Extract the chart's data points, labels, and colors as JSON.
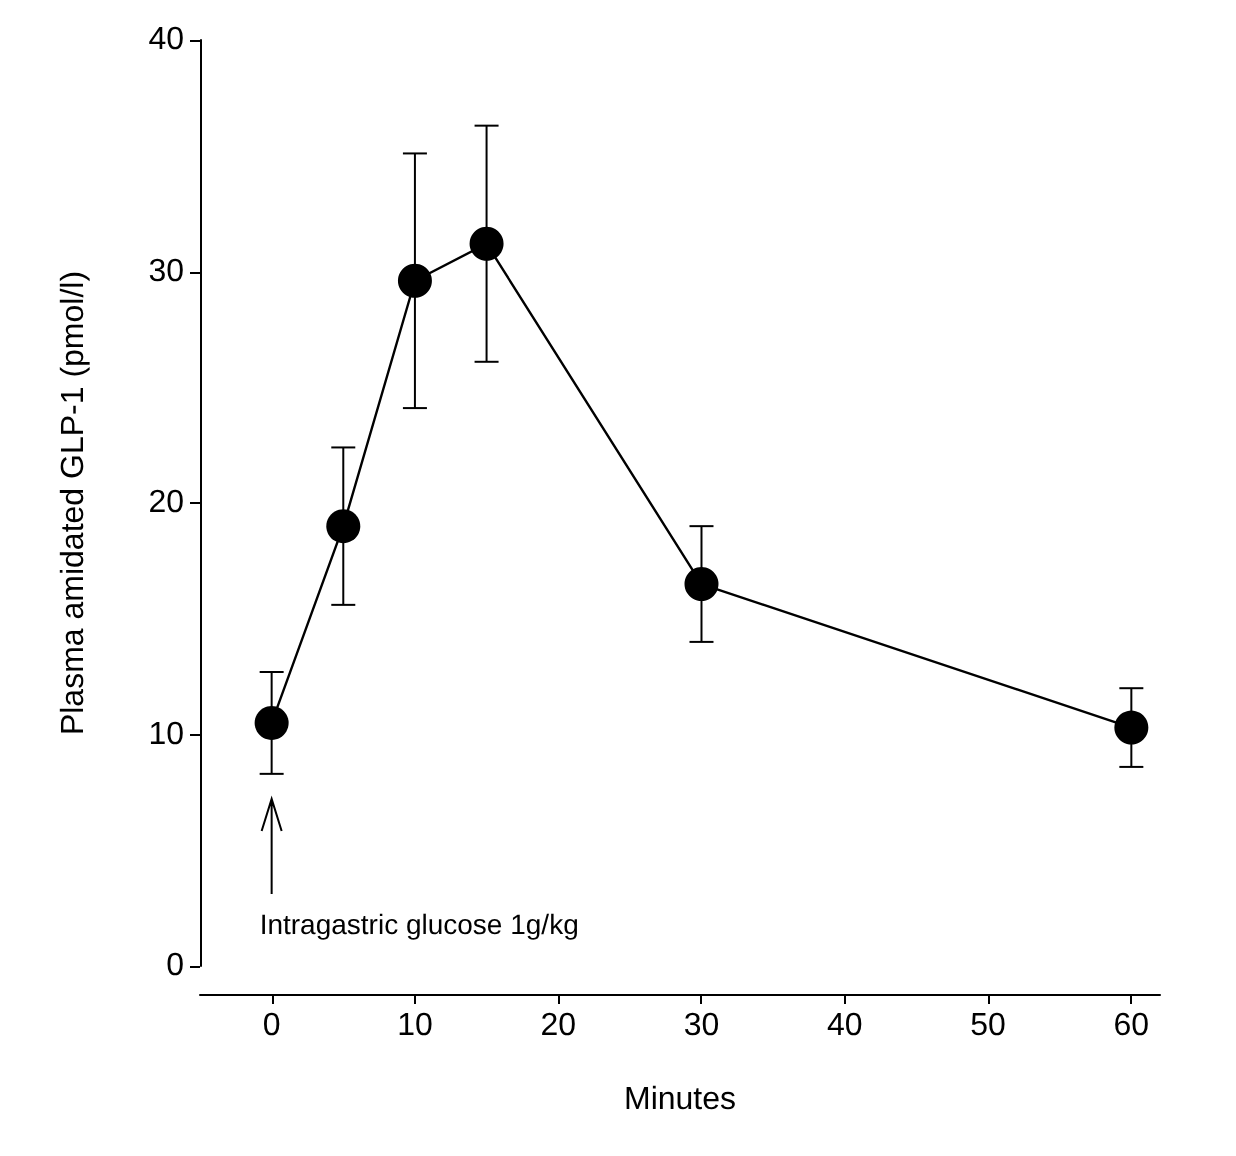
{
  "chart_data": {
    "type": "line",
    "xlabel": "Minutes",
    "ylabel": "Plasma amidated GLP-1 (pmol/l)",
    "x": [
      0,
      5,
      10,
      15,
      30,
      60
    ],
    "series": [
      {
        "color": "#000000",
        "values": [
          10.5,
          19.0,
          29.6,
          31.2,
          16.5,
          10.3
        ],
        "errors": [
          2.2,
          3.4,
          5.5,
          5.1,
          2.5,
          1.7
        ]
      }
    ],
    "xlim": [
      -5,
      62
    ],
    "xticks": [
      0,
      10,
      20,
      30,
      40,
      50,
      60
    ],
    "ylim": [
      0,
      40
    ],
    "yticks": [
      0,
      10,
      20,
      30,
      40
    ],
    "annotations": [
      "Intragastric glucose 1g/kg"
    ],
    "grid": false,
    "marker": "circle",
    "line_style": "solid"
  }
}
